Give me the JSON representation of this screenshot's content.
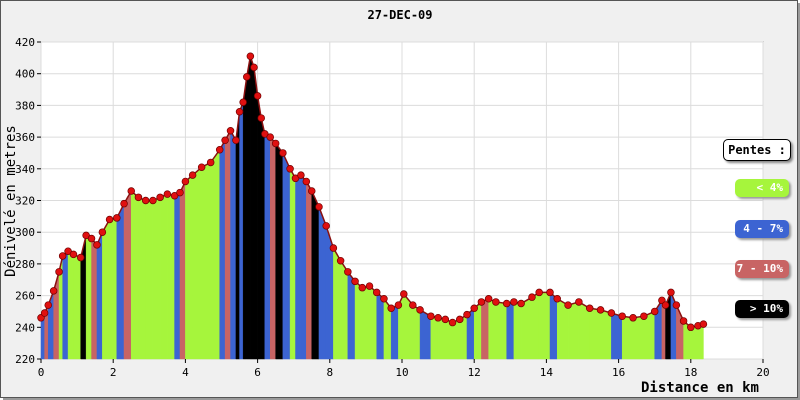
{
  "chart_data": {
    "type": "area",
    "title": "27-DEC-09",
    "xlabel": "Distance en km",
    "ylabel": "Dénivelé en metres",
    "xlim": [
      0,
      20
    ],
    "ylim": [
      220,
      420
    ],
    "x_ticks": [
      "0",
      "2",
      "4",
      "6",
      "8",
      "10",
      "12",
      "14",
      "16",
      "18",
      "20"
    ],
    "y_ticks": [
      "220",
      "240",
      "260",
      "280",
      "300",
      "320",
      "340",
      "360",
      "380",
      "400",
      "420"
    ],
    "grid": true,
    "legend_position": "right",
    "legend_title": "Pentes :",
    "legend": [
      {
        "label": "< 4%",
        "color": "#a6f53c"
      },
      {
        "label": "4 - 7%",
        "color": "#3c64d2"
      },
      {
        "label": "7 - 10%",
        "color": "#c86464"
      },
      {
        "label": "> 10%",
        "color": "#000000"
      }
    ],
    "x": [
      0.0,
      0.1,
      0.2,
      0.35,
      0.5,
      0.6,
      0.75,
      0.9,
      1.1,
      1.25,
      1.4,
      1.55,
      1.7,
      1.9,
      2.1,
      2.3,
      2.5,
      2.7,
      2.9,
      3.1,
      3.3,
      3.5,
      3.7,
      3.85,
      4.0,
      4.2,
      4.45,
      4.7,
      4.95,
      5.1,
      5.25,
      5.4,
      5.5,
      5.6,
      5.7,
      5.8,
      5.9,
      6.0,
      6.1,
      6.2,
      6.35,
      6.5,
      6.7,
      6.9,
      7.05,
      7.2,
      7.35,
      7.5,
      7.7,
      7.9,
      8.1,
      8.3,
      8.5,
      8.7,
      8.9,
      9.1,
      9.3,
      9.5,
      9.7,
      9.9,
      10.05,
      10.3,
      10.5,
      10.8,
      11.0,
      11.2,
      11.4,
      11.6,
      11.8,
      12.0,
      12.2,
      12.4,
      12.6,
      12.9,
      13.1,
      13.3,
      13.6,
      13.8,
      14.1,
      14.3,
      14.6,
      14.9,
      15.2,
      15.5,
      15.8,
      16.1,
      16.4,
      16.7,
      17.0,
      17.2,
      17.3,
      17.45,
      17.6,
      17.8,
      18.0,
      18.2,
      18.35
    ],
    "elevation": [
      246,
      249,
      254,
      263,
      275,
      285,
      288,
      286,
      284,
      298,
      296,
      292,
      300,
      308,
      309,
      318,
      326,
      322,
      320,
      320,
      322,
      324,
      323,
      325,
      332,
      336,
      341,
      344,
      352,
      358,
      364,
      358,
      376,
      382,
      398,
      411,
      404,
      386,
      372,
      362,
      360,
      356,
      350,
      340,
      334,
      336,
      332,
      326,
      316,
      304,
      290,
      282,
      275,
      269,
      265,
      266,
      262,
      258,
      252,
      254,
      261,
      254,
      251,
      247,
      246,
      245,
      243,
      245,
      248,
      252,
      256,
      258,
      256,
      255,
      256,
      255,
      259,
      262,
      262,
      258,
      254,
      256,
      252,
      251,
      249,
      247,
      246,
      247,
      250,
      257,
      254,
      262,
      254,
      244,
      240,
      241,
      242
    ],
    "slope_class": [
      1,
      2,
      1,
      2,
      0,
      1,
      0,
      0,
      3,
      0,
      2,
      1,
      0,
      0,
      1,
      2,
      0,
      0,
      0,
      0,
      0,
      0,
      1,
      2,
      0,
      0,
      0,
      0,
      1,
      2,
      1,
      3,
      1,
      3,
      3,
      3,
      3,
      3,
      3,
      1,
      2,
      3,
      1,
      0,
      1,
      1,
      2,
      3,
      1,
      1,
      0,
      0,
      1,
      0,
      0,
      0,
      1,
      0,
      1,
      0,
      0,
      0,
      1,
      0,
      0,
      0,
      0,
      0,
      1,
      0,
      2,
      0,
      0,
      1,
      0,
      0,
      0,
      0,
      1,
      0,
      0,
      0,
      0,
      0,
      1,
      0,
      0,
      0,
      1,
      2,
      3,
      1,
      2,
      0,
      0,
      0,
      0
    ]
  }
}
